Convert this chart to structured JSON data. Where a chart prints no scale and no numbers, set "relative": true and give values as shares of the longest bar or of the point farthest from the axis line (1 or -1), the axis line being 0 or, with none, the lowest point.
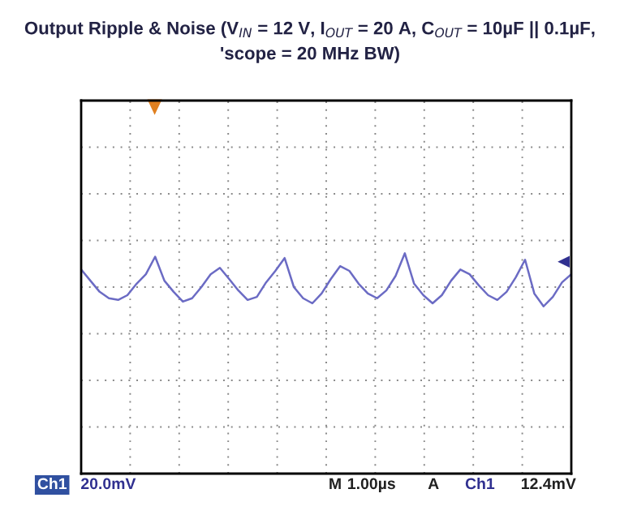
{
  "chart_data": {
    "type": "line",
    "title": "Output Ripple & Noise (V$_{IN}$ = 12 V, I$_{OUT}$ = 20 A, C$_{OUT}$ = 10µF || 0.1µF, 'scope = 20 MHz BW)",
    "relative": true,
    "grid": true,
    "legend": false,
    "marker": "none",
    "line_style": "solid",
    "categories": [
      null,
      null,
      null,
      null,
      null,
      null,
      null,
      null,
      null,
      null,
      null,
      null,
      null,
      null,
      null,
      null,
      null,
      null,
      null,
      null,
      null,
      null,
      null,
      null,
      null,
      null,
      null,
      null,
      null,
      null,
      null,
      null,
      null,
      null,
      null,
      null,
      null,
      null,
      null,
      null,
      null,
      null,
      null,
      null,
      null,
      null,
      null,
      null,
      null,
      null,
      null,
      null,
      null,
      null
    ],
    "series": [
      {
        "color": "#6b6bc4",
        "values": [
          0.52,
          0.19,
          -0.14,
          -0.33,
          -0.38,
          -0.24,
          0.1,
          0.38,
          0.9,
          0.19,
          -0.14,
          -0.43,
          -0.33,
          0,
          0.38,
          0.57,
          0.24,
          -0.1,
          -0.38,
          -0.29,
          0.14,
          0.48,
          0.86,
          0,
          -0.33,
          -0.48,
          -0.19,
          0.24,
          0.62,
          0.48,
          0.1,
          -0.19,
          -0.33,
          -0.1,
          0.33,
          1,
          0.1,
          -0.24,
          -0.48,
          -0.24,
          0.19,
          0.52,
          0.38,
          0.05,
          -0.24,
          -0.38,
          -0.14,
          0.29,
          0.81,
          -0.19,
          -0.57,
          -0.29,
          0.14,
          0.38
        ]
      }
    ],
    "annotations": [
      "Ch1",
      "20.0mV",
      "M",
      "1.00µs",
      "A",
      "Ch1",
      "12.4mV"
    ]
  }
}
